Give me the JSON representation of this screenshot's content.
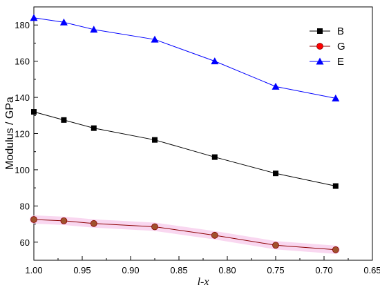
{
  "chart_data": {
    "type": "line",
    "xlabel": "l-x",
    "ylabel": "Modulus / GPa",
    "xlim": [
      1.0,
      0.65
    ],
    "ylim": [
      50,
      190
    ],
    "x_reversed": true,
    "xticks": [
      "1.00",
      "0.95",
      "0.90",
      "0.85",
      "0.80",
      "0.75",
      "0.70",
      "0.65"
    ],
    "yticks": [
      "60",
      "80",
      "100",
      "120",
      "140",
      "160",
      "180"
    ],
    "legend_position": "top-right",
    "x": [
      1.0,
      0.969,
      0.938,
      0.875,
      0.813,
      0.75,
      0.688
    ],
    "series": [
      {
        "name": "B",
        "marker": "square",
        "color": "#000000",
        "values": [
          132,
          127.5,
          123,
          116.5,
          107,
          98,
          91
        ]
      },
      {
        "name": "G",
        "marker": "circle",
        "color": "#ff0000",
        "line_color": "#8b0000",
        "values": [
          72.5,
          71.8,
          70.3,
          68.5,
          63.8,
          58.3,
          55.8
        ]
      },
      {
        "name": "E",
        "marker": "triangle",
        "color": "#0000ff",
        "values": [
          184,
          181.5,
          177.5,
          172,
          160,
          146,
          139.5
        ]
      }
    ]
  }
}
